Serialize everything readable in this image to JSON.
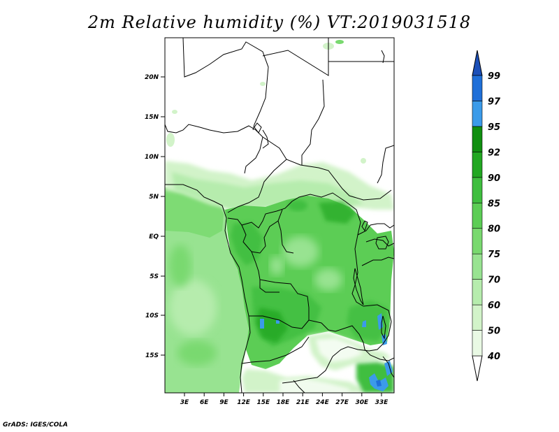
{
  "title": "2m Relative humidity (%) VT:2019031518",
  "credit": "GrADS: IGES/COLA",
  "map": {
    "y_ticks": [
      "20N",
      "15N",
      "10N",
      "5N",
      "EQ",
      "5S",
      "10S",
      "15S"
    ],
    "x_ticks": [
      "3E",
      "6E",
      "9E",
      "12E",
      "15E",
      "18E",
      "21E",
      "24E",
      "27E",
      "30E",
      "33E"
    ]
  },
  "colorbar": {
    "levels": [
      "40",
      "50",
      "60",
      "70",
      "75",
      "80",
      "85",
      "90",
      "92",
      "95",
      "97",
      "99"
    ],
    "colors": [
      "#ffffff",
      "#e9f9e4",
      "#d2f3c9",
      "#b6ecad",
      "#98e391",
      "#79d96f",
      "#5ccd55",
      "#3fbe3f",
      "#22a722",
      "#108f10",
      "#3b9be9",
      "#1f6fd8",
      "#1b4fb8"
    ]
  }
}
